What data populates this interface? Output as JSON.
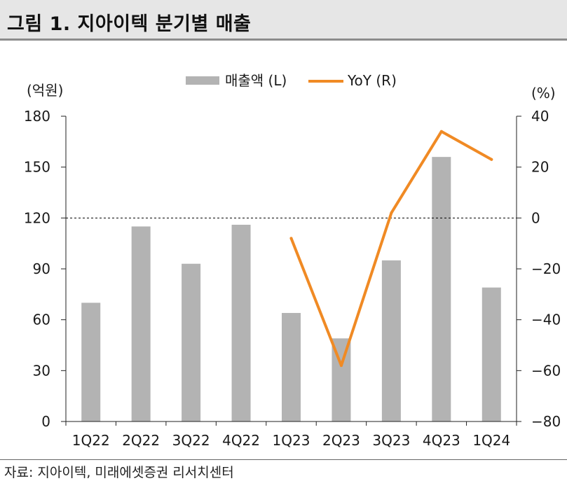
{
  "header": {
    "title": "그림 1. 지아이텍 분기별 매출"
  },
  "footer": {
    "source": "자료: 지아이텍, 미래에셋증권 리서치센터"
  },
  "chart_data": {
    "type": "bar+line",
    "categories": [
      "1Q22",
      "2Q22",
      "3Q22",
      "4Q22",
      "1Q23",
      "2Q23",
      "3Q23",
      "4Q23",
      "1Q24"
    ],
    "series": [
      {
        "name": "매출액 (L)",
        "type": "bar",
        "axis": "left",
        "color": "#b3b3b3",
        "values": [
          70,
          115,
          93,
          116,
          64,
          49,
          95,
          156,
          79
        ]
      },
      {
        "name": "YoY (R)",
        "type": "line",
        "axis": "right",
        "color": "#f08a24",
        "values": [
          null,
          null,
          null,
          null,
          -8,
          -58,
          2,
          34,
          23
        ]
      }
    ],
    "left_axis": {
      "unit": "(억원)",
      "ylim": [
        0,
        180
      ],
      "ticks": [
        0,
        30,
        60,
        90,
        120,
        150,
        180
      ]
    },
    "right_axis": {
      "unit": "(%)",
      "ylim": [
        -80,
        40
      ],
      "ticks": [
        -80,
        -60,
        -40,
        -20,
        0,
        20,
        40
      ]
    },
    "reference_line": {
      "axis": "right",
      "value": 0,
      "style": "dashed"
    },
    "legend": {
      "position": "top-center"
    }
  }
}
